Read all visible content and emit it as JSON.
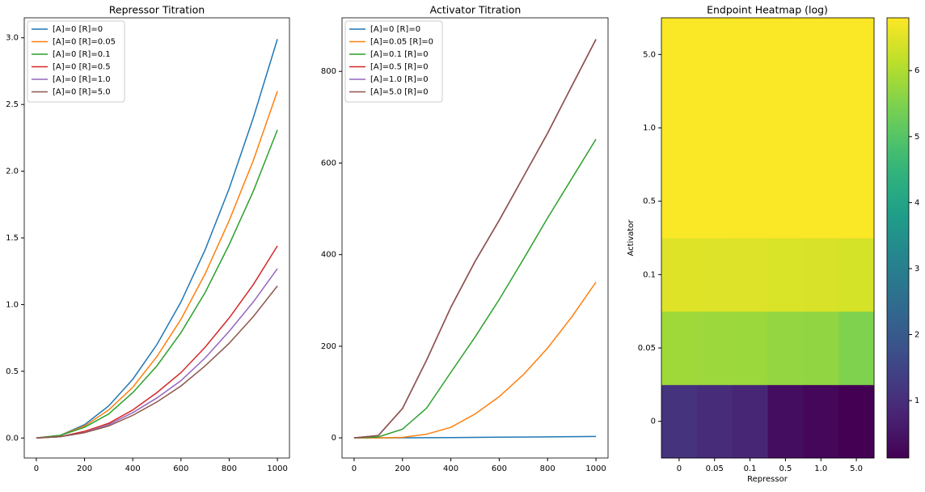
{
  "chart_data": [
    {
      "type": "line",
      "title": "Repressor Titration",
      "x": [
        0,
        100,
        200,
        300,
        400,
        500,
        600,
        700,
        800,
        900,
        1000
      ],
      "series": [
        {
          "name": "[A]=0 [R]=0",
          "color": "#1f77b4",
          "values": [
            0,
            0.02,
            0.1,
            0.24,
            0.44,
            0.7,
            1.02,
            1.41,
            1.87,
            2.4,
            2.99
          ]
        },
        {
          "name": "[A]=0 [R]=0.05",
          "color": "#ff7f0e",
          "values": [
            0,
            0.02,
            0.09,
            0.21,
            0.38,
            0.61,
            0.89,
            1.23,
            1.63,
            2.08,
            2.6
          ]
        },
        {
          "name": "[A]=0 [R]=0.1",
          "color": "#2ca02c",
          "values": [
            0,
            0.02,
            0.08,
            0.18,
            0.34,
            0.54,
            0.79,
            1.09,
            1.45,
            1.85,
            2.31
          ]
        },
        {
          "name": "[A]=0 [R]=0.5",
          "color": "#d62728",
          "values": [
            0,
            0.01,
            0.05,
            0.11,
            0.21,
            0.34,
            0.49,
            0.68,
            0.9,
            1.15,
            1.44
          ]
        },
        {
          "name": "[A]=0 [R]=1.0",
          "color": "#9467bd",
          "values": [
            0,
            0.01,
            0.04,
            0.1,
            0.19,
            0.3,
            0.43,
            0.6,
            0.8,
            1.02,
            1.27
          ]
        },
        {
          "name": "[A]=0 [R]=5.0",
          "color": "#8c564b",
          "values": [
            0,
            0.01,
            0.04,
            0.09,
            0.17,
            0.27,
            0.39,
            0.54,
            0.71,
            0.91,
            1.14
          ]
        }
      ],
      "xlim": [
        -50,
        1050
      ],
      "xticks": [
        0,
        200,
        400,
        600,
        800,
        1000
      ],
      "ylim": [
        -0.15,
        3.15
      ],
      "yticks": [
        {
          "value": 0,
          "label": "0.0"
        },
        {
          "value": 0.5,
          "label": "0.5"
        },
        {
          "value": 1,
          "label": "1.0"
        },
        {
          "value": 1.5,
          "label": "1.5"
        },
        {
          "value": 2,
          "label": "2.0"
        },
        {
          "value": 2.5,
          "label": "2.5"
        },
        {
          "value": 3,
          "label": "3.0"
        }
      ],
      "legend": "upper left"
    },
    {
      "type": "line",
      "title": "Activator Titration",
      "x": [
        0,
        100,
        200,
        300,
        400,
        500,
        600,
        700,
        800,
        900,
        1000
      ],
      "series": [
        {
          "name": "[A]=0 [R]=0",
          "color": "#1f77b4",
          "values": [
            0,
            0,
            0.2,
            0.4,
            0.7,
            1,
            1.4,
            1.8,
            2.2,
            2.6,
            3
          ]
        },
        {
          "name": "[A]=0.05 [R]=0",
          "color": "#ff7f0e",
          "values": [
            0,
            0,
            1,
            8,
            23,
            52,
            90,
            138,
            196,
            264,
            340
          ]
        },
        {
          "name": "[A]=0.1 [R]=0",
          "color": "#2ca02c",
          "values": [
            0,
            2,
            19,
            65,
            143,
            220,
            302,
            390,
            480,
            566,
            652
          ]
        },
        {
          "name": "[A]=0.5 [R]=0",
          "color": "#d62728",
          "values": [
            0,
            5,
            64,
            170,
            285,
            385,
            475,
            570,
            665,
            768,
            870
          ]
        },
        {
          "name": "[A]=1.0 [R]=0",
          "color": "#9467bd",
          "values": [
            0,
            5,
            64,
            170,
            285,
            385,
            475,
            570,
            665,
            768,
            870
          ]
        },
        {
          "name": "[A]=5.0 [R]=0",
          "color": "#8c564b",
          "values": [
            0,
            5,
            64,
            170,
            285,
            385,
            475,
            570,
            665,
            768,
            870
          ]
        }
      ],
      "xlim": [
        -50,
        1050
      ],
      "xticks": [
        0,
        200,
        400,
        600,
        800,
        1000
      ],
      "ylim": [
        -44,
        917
      ],
      "yticks": [
        0,
        200,
        400,
        600,
        800
      ],
      "legend": "upper left"
    },
    {
      "type": "heatmap",
      "title": "Endpoint Heatmap (log)",
      "x_label": "Repressor",
      "y_label": "Activator",
      "x_categories": [
        "0",
        "0.05",
        "0.1",
        "0.5",
        "1.0",
        "5.0"
      ],
      "y_categories": [
        "0",
        "0.05",
        "0.1",
        "0.5",
        "1.0",
        "5.0"
      ],
      "values": [
        [
          1.1,
          0.96,
          0.84,
          0.36,
          0.24,
          0.13
        ],
        [
          5.83,
          5.8,
          5.78,
          5.7,
          5.68,
          5.5
        ],
        [
          6.48,
          6.47,
          6.46,
          6.43,
          6.42,
          6.38
        ],
        [
          6.77,
          6.77,
          6.77,
          6.77,
          6.77,
          6.77
        ],
        [
          6.77,
          6.77,
          6.77,
          6.77,
          6.77,
          6.77
        ],
        [
          6.77,
          6.77,
          6.77,
          6.77,
          6.77,
          6.77
        ]
      ],
      "colormap": "viridis",
      "clim": [
        0.13,
        6.8
      ],
      "cticks": [
        1,
        2,
        3,
        4,
        5,
        6
      ]
    }
  ]
}
